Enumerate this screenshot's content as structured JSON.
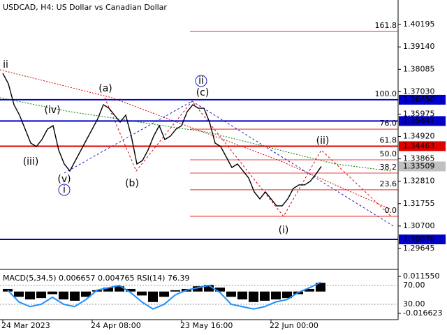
{
  "chart_data": [
    {
      "type": "line",
      "title": "USDCAD, H4:  US Dollar vs Canadian Dollar",
      "color": "#000000",
      "values": [
        1.37895,
        1.37402,
        1.36416,
        1.35923,
        1.35266,
        1.34608,
        1.34444,
        1.34773,
        1.35266,
        1.3543,
        1.3428,
        1.33623,
        1.33294,
        1.33787,
        1.3428,
        1.34773,
        1.35266,
        1.35759,
        1.36416,
        1.36252,
        1.35923,
        1.35594,
        1.35923,
        1.34937,
        1.33623,
        1.33787,
        1.3428,
        1.34937,
        1.3543,
        1.34773,
        1.34937,
        1.35266,
        1.3543,
        1.36087,
        1.36416,
        1.36252,
        1.36252,
        1.35594,
        1.34608,
        1.34444,
        1.33951,
        1.33458,
        1.33623,
        1.33294,
        1.32965,
        1.32308,
        1.31979,
        1.32308,
        1.31979,
        1.31651,
        1.31651,
        1.31979,
        1.32472,
        1.32637,
        1.32637,
        1.32801,
        1.3313,
        1.33509
      ],
      "ylim": [
        1.2869,
        1.4135
      ],
      "yticks": [
        1.40195,
        {
          "value": 1.3914,
          "label": "1.39140"
        },
        1.38085,
        {
          "value": 1.3703,
          "label": "1.37030"
        },
        1.35975,
        {
          "value": 1.3492,
          "label": "1.34920"
        },
        1.33865,
        {
          "value": 1.3281,
          "label": "1.32810"
        },
        1.31755,
        {
          "value": 1.307,
          "label": "1.30700"
        },
        1.29645
      ],
      "xticks": [
        {
          "value": 0,
          "label": "24 Mar 2023"
        },
        {
          "value": 16,
          "label": "24 Apr 08:00"
        },
        {
          "value": 32,
          "label": "23 May 16:00"
        },
        {
          "value": 48,
          "label": "22 Jun 00:00"
        }
      ],
      "levels": [
        {
          "value": 1.3665,
          "label": "1.36650",
          "color": "#0000c8"
        },
        {
          "value": 1.35647,
          "label": "1.35647",
          "color": "#0000c8"
        },
        {
          "value": 1.34463,
          "label": "1.34463",
          "color": "#e00000"
        },
        {
          "value": 1.33509,
          "label": "1.33509",
          "color": "#c0c0c0"
        },
        {
          "value": 1.3007,
          "label": "1.30070",
          "color": "#0000c8"
        }
      ],
      "fib": [
        {
          "value": 1.39866,
          "label": "161.8"
        },
        {
          "value": 1.3665,
          "label": "100.0"
        },
        {
          "value": 1.35265,
          "label": "76.0"
        },
        {
          "value": 1.34463,
          "label": "61.8"
        },
        {
          "value": 1.3382,
          "label": "50.0"
        },
        {
          "value": 1.33196,
          "label": "38.2"
        },
        {
          "value": 1.32408,
          "label": "23.6"
        },
        {
          "value": 1.31159,
          "label": "0.0"
        }
      ],
      "fib_color": "#e00000",
      "annotations": [
        {
          "text": "ii",
          "color": "#e00000"
        },
        {
          "text": "(a)",
          "color": "#e00000"
        },
        {
          "text": "(iv)",
          "color": "#e00000"
        },
        {
          "text": "(iii)",
          "color": "#e00000"
        },
        {
          "text": "(v)",
          "color": "#e00000"
        },
        {
          "text": "i",
          "color": "#1e1ec8",
          "circled": true
        },
        {
          "text": "(b)",
          "color": "#e00000"
        },
        {
          "text": "ii",
          "color": "#1e1ec8",
          "circled": true
        },
        {
          "text": "(c)",
          "color": "#e00000"
        },
        {
          "text": "(ii)",
          "color": "#e00000"
        },
        {
          "text": "(i)",
          "color": "#e00000"
        }
      ]
    },
    {
      "type": "macd",
      "title": "MACD(5,34,5) 0.006657 0.004765 RSI(14) 76.39",
      "color": "#000000",
      "values": [
        0.002,
        -0.004,
        -0.006,
        -0.005,
        -0.002,
        -0.006,
        -0.007,
        -0.004,
        0.001,
        0.003,
        0.004,
        0.002,
        -0.003,
        -0.008,
        -0.004,
        0.001,
        0.002,
        0.004,
        0.005,
        0.003,
        -0.004,
        -0.006,
        -0.008,
        -0.007,
        -0.006,
        -0.005,
        -0.002,
        0.002,
        0.006657
      ],
      "ylim": [
        -0.02141,
        0.01474
      ],
      "yticks": [
        {
          "value": 0.01155,
          "label": "0.011550"
        },
        -0.016623
      ],
      "series": [
        {
          "name": "RSI(14)",
          "color": "#1e90ff",
          "axis": "y2",
          "values": [
            60,
            35,
            25,
            30,
            45,
            30,
            25,
            40,
            60,
            65,
            70,
            55,
            35,
            20,
            30,
            50,
            60,
            65,
            70,
            55,
            30,
            25,
            20,
            25,
            35,
            40,
            55,
            65,
            76.39
          ]
        }
      ],
      "y2lim": [
        -2.6,
        98.1
      ],
      "y2ticks": [
        {
          "value": 70,
          "label": "70.00"
        },
        {
          "value": 30,
          "label": "30.00"
        }
      ]
    }
  ]
}
